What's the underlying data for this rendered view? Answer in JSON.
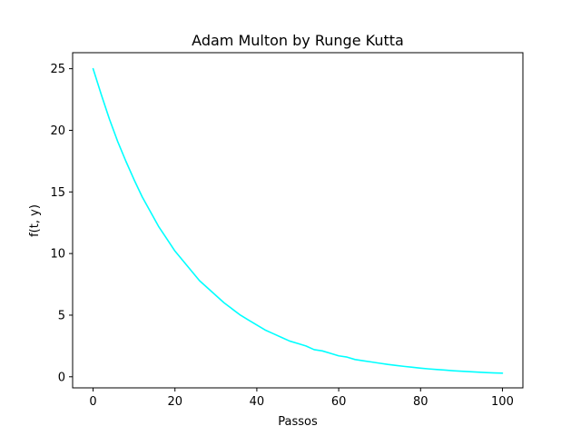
{
  "chart_data": {
    "type": "line",
    "title": "Adam Multon by Runge Kutta",
    "xlabel": "Passos",
    "ylabel": "f(t, y)",
    "xlim": [
      -5,
      105
    ],
    "ylim": [
      -0.9,
      26.3
    ],
    "x_ticks": [
      0,
      20,
      40,
      60,
      80,
      100
    ],
    "y_ticks": [
      0,
      5,
      10,
      15,
      20,
      25
    ],
    "grid": false,
    "series": [
      {
        "color": "#00ffff",
        "x": [
          0,
          2,
          4,
          6,
          8,
          10,
          12,
          14,
          16,
          18,
          20,
          22,
          24,
          26,
          28,
          30,
          32,
          34,
          36,
          38,
          40,
          42,
          44,
          46,
          48,
          50,
          52,
          54,
          56,
          58,
          60,
          62,
          64,
          66,
          68,
          70,
          72,
          74,
          76,
          78,
          80,
          82,
          84,
          86,
          88,
          90,
          92,
          94,
          96,
          98,
          100
        ],
        "y": [
          25.0,
          22.9,
          20.9,
          19.1,
          17.5,
          16.0,
          14.6,
          13.4,
          12.2,
          11.2,
          10.2,
          9.4,
          8.6,
          7.8,
          7.2,
          6.6,
          6.0,
          5.5,
          5.0,
          4.6,
          4.2,
          3.8,
          3.5,
          3.2,
          2.9,
          2.7,
          2.5,
          2.2,
          2.1,
          1.9,
          1.7,
          1.6,
          1.4,
          1.3,
          1.2,
          1.1,
          1.0,
          0.92,
          0.84,
          0.77,
          0.7,
          0.64,
          0.59,
          0.54,
          0.49,
          0.45,
          0.41,
          0.38,
          0.34,
          0.31,
          0.29
        ]
      }
    ]
  }
}
